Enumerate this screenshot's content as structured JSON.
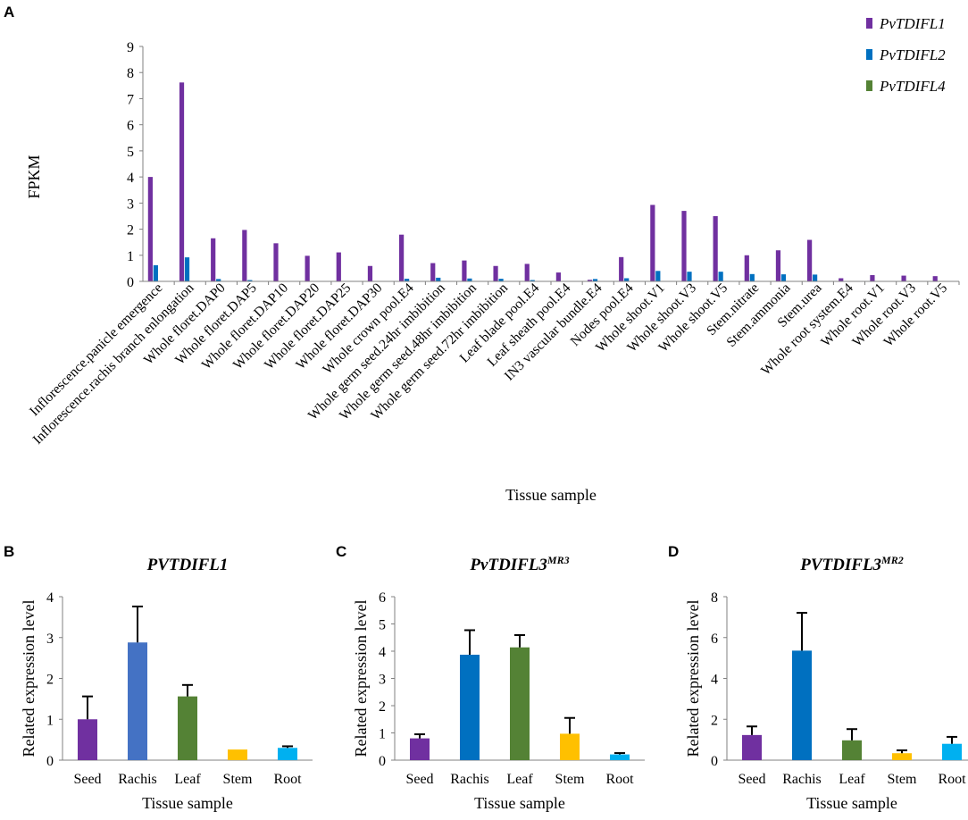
{
  "panels": {
    "A": {
      "letter": "A",
      "chart_data": {
        "type": "bar",
        "title": "",
        "xlabel": "Tissue sample",
        "ylabel": "FPKM",
        "ylim": [
          0,
          9
        ],
        "yticks": [
          "0",
          "1",
          "2",
          "3",
          "4",
          "5",
          "6",
          "7",
          "8",
          "9"
        ],
        "categories": [
          "Inflorescence.panicle emergence",
          "Inflorescence.rachis branch enlongation",
          "Whole floret.DAP0",
          "Whole floret.DAP5",
          "Whole floret.DAP10",
          "Whole floret.DAP20",
          "Whole floret.DAP25",
          "Whole floret.DAP30",
          "Whole crown pool.E4",
          "Whole germ seed.24hr imbibition",
          "Whole germ seed.48hr imbibition",
          "Whole germ seed.72hr imbibition",
          "Leaf blade pool.E4",
          "Leaf sheath pool.E4",
          "IN3 vascular bundle.E4",
          "Nodes pool.E4",
          "Whole shoot.V1",
          "Whole shoot.V3",
          "Whole shoot.V5",
          "Stem.nitrate",
          "Stem.ammonia",
          "Stem.urea",
          "Whole root system.E4",
          "Whole root.V1",
          "Whole root.V3",
          "Whole root.V5"
        ],
        "series": [
          {
            "name": "PvTDIFL1",
            "color": "#7030a0",
            "values": [
              4.0,
              7.62,
              1.65,
              1.97,
              1.46,
              0.98,
              1.11,
              0.59,
              1.79,
              0.7,
              0.8,
              0.59,
              0.67,
              0.34,
              0.06,
              0.93,
              2.93,
              2.7,
              2.5,
              1.0,
              1.19,
              1.59,
              0.12,
              0.24,
              0.22,
              0.2
            ]
          },
          {
            "name": "PvTDIFL2",
            "color": "#0070c0",
            "values": [
              0.62,
              0.92,
              0.09,
              0.05,
              0.0,
              0.0,
              0.0,
              0.0,
              0.1,
              0.14,
              0.11,
              0.1,
              0.05,
              0.0,
              0.09,
              0.12,
              0.4,
              0.37,
              0.37,
              0.28,
              0.27,
              0.26,
              0.0,
              0.0,
              0.0,
              0.0
            ]
          },
          {
            "name": "PvTDIFL4",
            "color": "#548235",
            "values": [
              0,
              0,
              0,
              0,
              0,
              0,
              0,
              0,
              0,
              0,
              0,
              0,
              0,
              0,
              0,
              0,
              0,
              0,
              0,
              0,
              0,
              0,
              0,
              0,
              0,
              0
            ]
          }
        ],
        "legend": "top-right"
      }
    },
    "B": {
      "letter": "B",
      "chart_data": {
        "type": "bar",
        "title": "PVTDIFL1",
        "title_sup": "",
        "xlabel": "Tissue sample",
        "ylabel": "Related expression level",
        "ylim": [
          0,
          4
        ],
        "yticks": [
          "0",
          "1",
          "2",
          "3",
          "4"
        ],
        "categories": [
          "Seed",
          "Rachis",
          "Leaf",
          "Stem",
          "Root"
        ],
        "values": [
          1.0,
          2.88,
          1.56,
          0.26,
          0.3
        ],
        "errors": [
          0.56,
          0.88,
          0.28,
          0.0,
          0.04
        ],
        "colors": [
          "#7030a0",
          "#4472c4",
          "#548235",
          "#ffc000",
          "#00b0f0"
        ]
      }
    },
    "C": {
      "letter": "C",
      "chart_data": {
        "type": "bar",
        "title": "PvTDIFL3",
        "title_sup": "MR3",
        "xlabel": "Tissue sample",
        "ylabel": "Related expression level",
        "ylim": [
          0,
          6
        ],
        "yticks": [
          "0",
          "1",
          "2",
          "3",
          "4",
          "5",
          "6"
        ],
        "categories": [
          "Seed",
          "Rachis",
          "Leaf",
          "Stem",
          "Root"
        ],
        "values": [
          0.8,
          3.87,
          4.14,
          0.97,
          0.21
        ],
        "errors": [
          0.15,
          0.9,
          0.45,
          0.58,
          0.05
        ],
        "colors": [
          "#7030a0",
          "#0070c0",
          "#548235",
          "#ffc000",
          "#00b0f0"
        ]
      }
    },
    "D": {
      "letter": "D",
      "chart_data": {
        "type": "bar",
        "title": "PVTDIFL3",
        "title_sup": "MR2",
        "xlabel": "Tissue sample",
        "ylabel": "Related expression level",
        "ylim": [
          0,
          8
        ],
        "yticks": [
          "0",
          "2",
          "4",
          "6",
          "8"
        ],
        "categories": [
          "Seed",
          "Rachis",
          "Leaf",
          "Stem",
          "Root"
        ],
        "values": [
          1.23,
          5.36,
          0.97,
          0.34,
          0.8
        ],
        "errors": [
          0.42,
          1.85,
          0.55,
          0.14,
          0.34
        ],
        "colors": [
          "#7030a0",
          "#0070c0",
          "#548235",
          "#ffc000",
          "#00b0f0"
        ]
      }
    }
  }
}
